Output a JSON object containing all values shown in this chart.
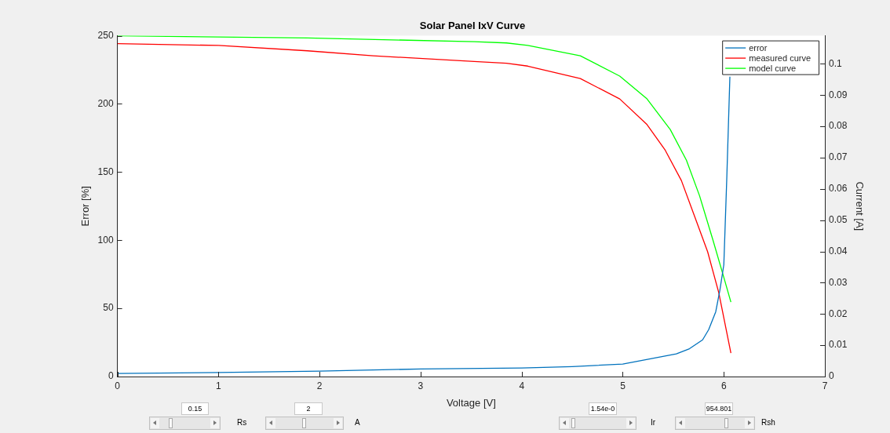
{
  "chart_data": {
    "type": "line",
    "title": "Solar Panel IxV Curve",
    "xlabel": "Voltage [V]",
    "ylabel": "Error [%]",
    "y2label": "Current [A]",
    "xlim": [
      0,
      7
    ],
    "xticks": [
      0,
      1,
      2,
      3,
      4,
      5,
      6,
      7
    ],
    "ylim": [
      0,
      250
    ],
    "yticks": [
      0,
      50,
      100,
      150,
      200,
      250
    ],
    "y2lim": [
      0,
      0.109
    ],
    "y2ticks": [
      0,
      0.01,
      0.02,
      0.03,
      0.04,
      0.05,
      0.06,
      0.07,
      0.08,
      0.09,
      0.1
    ],
    "grid": false,
    "legend": "top right",
    "marker": "none",
    "line_style": "solid",
    "series": [
      {
        "name": "error",
        "color": "#0072bd",
        "x": [
          0,
          1,
          2,
          3,
          4,
          4.5,
          5,
          5.53,
          5.66,
          5.79,
          5.85,
          5.92,
          5.96,
          6.0,
          6.03,
          6.06
        ],
        "values": [
          2.2,
          3,
          4,
          5.5,
          6.3,
          7.3,
          9.1,
          16.6,
          20.4,
          26.9,
          34.4,
          47.5,
          63,
          82,
          147,
          220
        ]
      },
      {
        "name": "measured curve",
        "color": "#ff0000",
        "axis": "y2",
        "x": [
          0,
          1,
          1.88,
          2.53,
          3.53,
          3.85,
          4.06,
          4.58,
          4.97,
          5.24,
          5.42,
          5.58,
          5.71,
          5.84,
          5.95,
          6.07
        ],
        "values": [
          0.1065,
          0.1059,
          0.1042,
          0.1026,
          0.1008,
          0.1002,
          0.0993,
          0.0953,
          0.0888,
          0.0806,
          0.0724,
          0.0627,
          0.0513,
          0.0399,
          0.0268,
          0.0075
        ]
      },
      {
        "name": "model curve",
        "color": "#00ff00",
        "axis": "y2",
        "x": [
          0,
          1.88,
          3.53,
          3.85,
          4.06,
          4.58,
          4.97,
          5.24,
          5.47,
          5.63,
          5.76,
          5.89,
          6.0,
          6.07
        ],
        "values": [
          0.109,
          0.1083,
          0.1071,
          0.1067,
          0.1059,
          0.1026,
          0.0961,
          0.0888,
          0.079,
          0.0692,
          0.0578,
          0.0439,
          0.0317,
          0.0238
        ]
      }
    ],
    "annotations": [
      "0.15",
      "Rs",
      "2",
      "A",
      "1.54e-0",
      "Ir",
      "954.801",
      "Rsh"
    ]
  }
}
